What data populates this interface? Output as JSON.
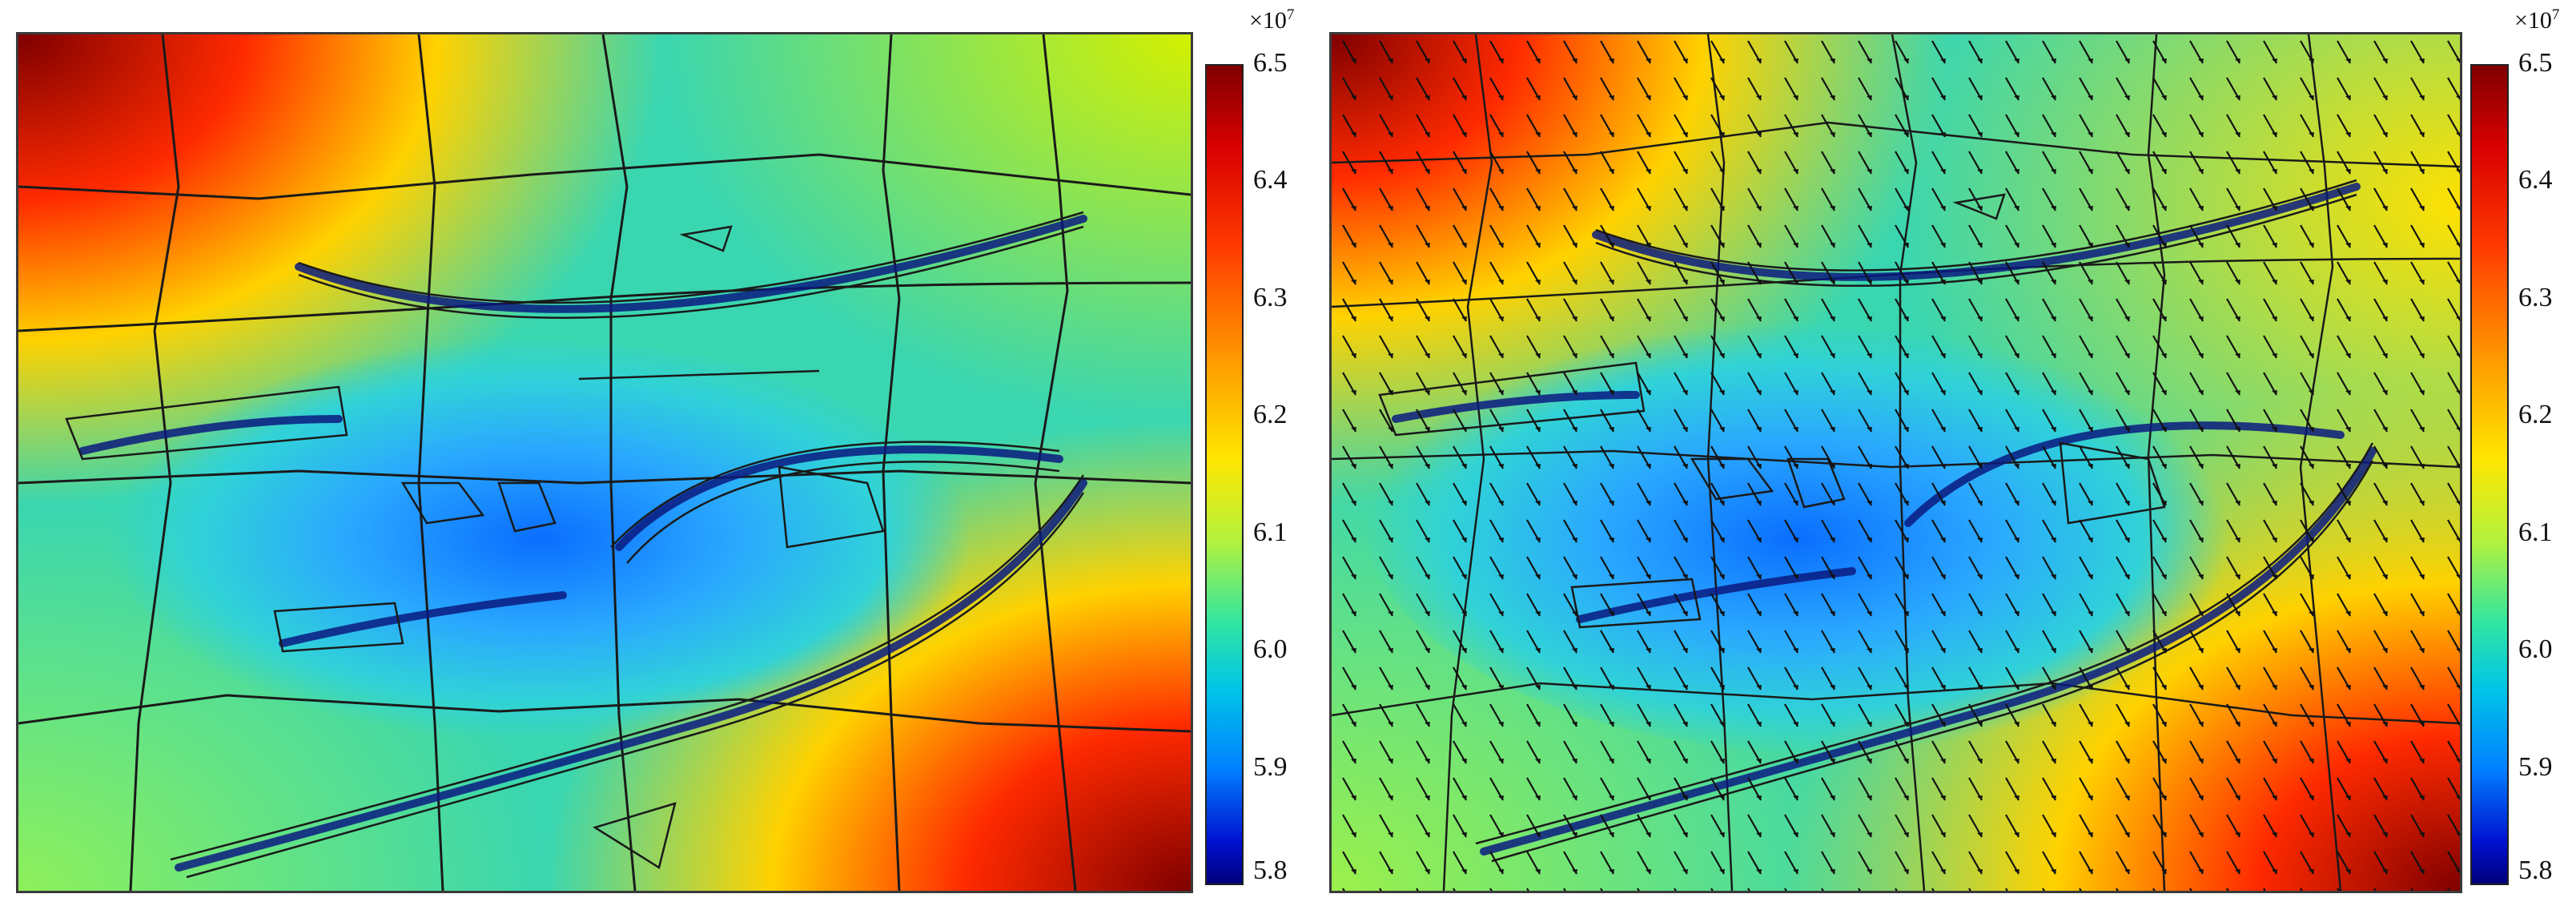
{
  "colorbar": {
    "exponent_base": "×10",
    "exponent_power": "7",
    "ticks": [
      "6.5",
      "6.4",
      "6.3",
      "6.2",
      "6.1",
      "6.0",
      "5.9",
      "5.8"
    ],
    "min": 5.8,
    "max": 6.5
  },
  "panels": [
    {
      "id": "left",
      "shows_direction_arrows": false
    },
    {
      "id": "right",
      "shows_direction_arrows": true
    }
  ],
  "colors": {
    "high": "#7f0000",
    "mid": "#32e6a0",
    "low": "#00007a",
    "background_field": "#3ad6b0",
    "line": "#1a1a1a"
  }
}
